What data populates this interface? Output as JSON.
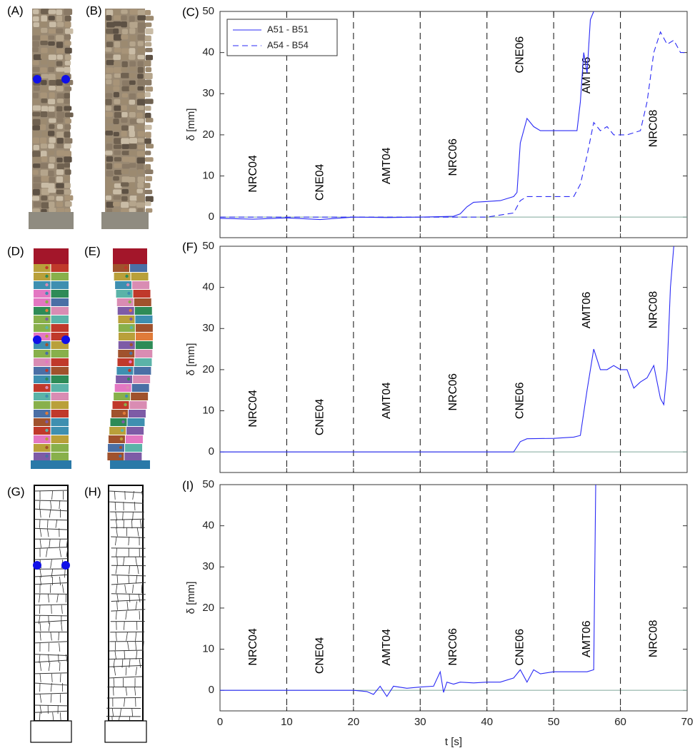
{
  "panels": {
    "labels": [
      "(A)",
      "(B)",
      "(D)",
      "(E)",
      "(G)",
      "(H)"
    ]
  },
  "chart_data": [
    {
      "type": "line",
      "title": "(C)",
      "ylabel": "δ [mm]",
      "xlim": [
        0,
        70
      ],
      "ylim": [
        -5,
        50
      ],
      "xticks": [
        0,
        10,
        20,
        30,
        40,
        50,
        60,
        70
      ],
      "yticks": [
        0,
        10,
        20,
        30,
        40,
        50
      ],
      "xtick_labels": false,
      "vlines": [
        10,
        20,
        30,
        40,
        50,
        60
      ],
      "annotations": [
        "NRC04",
        "CNE04",
        "AMT04",
        "NRC06",
        "CNE06",
        "AMT06",
        "NRC08"
      ],
      "legend": "upper left",
      "series": [
        {
          "name": "A51 - B51",
          "color": "#2a2af5",
          "dash": "solid",
          "x": [
            0,
            5,
            10,
            15,
            20,
            25,
            30,
            35,
            36,
            37,
            38,
            40,
            42,
            44,
            44.5,
            45,
            46,
            47,
            48,
            50,
            52,
            53.5,
            54,
            54.5,
            55,
            55.5,
            56
          ],
          "values": [
            -0.3,
            -0.5,
            -0.2,
            -0.6,
            0,
            -0.1,
            0,
            0.2,
            0.8,
            2.5,
            3.6,
            3.8,
            4,
            5,
            6,
            18,
            24,
            22,
            21,
            21,
            21,
            21,
            28,
            40,
            35,
            48,
            50
          ]
        },
        {
          "name": "A54 - B54",
          "color": "#2a2af5",
          "dash": "dashed",
          "x": [
            0,
            30,
            38,
            40,
            44,
            45,
            46,
            50,
            53,
            54,
            55,
            56,
            57,
            58,
            59,
            60,
            61,
            62,
            63,
            64,
            65,
            66,
            67,
            68,
            69,
            70
          ],
          "values": [
            0,
            0,
            0,
            0,
            1,
            4,
            5,
            5,
            5,
            8,
            15,
            23,
            21,
            22,
            20,
            20,
            20,
            20.5,
            21,
            28,
            40,
            45,
            42,
            43,
            40,
            40
          ]
        }
      ]
    },
    {
      "type": "line",
      "title": "(F)",
      "ylabel": "δ [mm]",
      "xlim": [
        0,
        70
      ],
      "ylim": [
        -5,
        50
      ],
      "xticks": [
        0,
        10,
        20,
        30,
        40,
        50,
        60,
        70
      ],
      "yticks": [
        0,
        10,
        20,
        30,
        40,
        50
      ],
      "xtick_labels": false,
      "vlines": [
        10,
        20,
        30,
        40,
        50,
        60
      ],
      "annotations": [
        "NRC04",
        "CNE04",
        "AMT04",
        "NRC06",
        "CNE06",
        "AMT06",
        "NRC08"
      ],
      "series": [
        {
          "color": "#2a2af5",
          "dash": "solid",
          "x": [
            0,
            10,
            20,
            30,
            40,
            44,
            45,
            46,
            50,
            53,
            54,
            55,
            56,
            57,
            58,
            59,
            60,
            61,
            62,
            63,
            64,
            65,
            66,
            66.5,
            67,
            67.5,
            68
          ],
          "values": [
            0,
            0,
            0,
            0,
            0,
            0,
            2.5,
            3.2,
            3.3,
            3.6,
            4,
            15,
            25,
            20,
            20,
            21,
            20,
            20,
            15.5,
            17,
            18,
            21,
            13,
            11.5,
            20,
            40,
            50
          ]
        }
      ]
    },
    {
      "type": "line",
      "title": "(I)",
      "ylabel": "δ [mm]",
      "xlabel": "t [s]",
      "xlim": [
        0,
        70
      ],
      "ylim": [
        -5,
        50
      ],
      "xticks": [
        0,
        10,
        20,
        30,
        40,
        50,
        60,
        70
      ],
      "yticks": [
        0,
        10,
        20,
        30,
        40,
        50
      ],
      "xtick_labels": true,
      "vlines": [
        10,
        20,
        30,
        40,
        50,
        60
      ],
      "annotations": [
        "NRC04",
        "CNE04",
        "AMT04",
        "NRC06",
        "CNE06",
        "AMT06",
        "NRC08"
      ],
      "series": [
        {
          "color": "#2a2af5",
          "dash": "solid",
          "x": [
            0,
            10,
            20,
            22,
            23,
            24,
            25,
            26,
            28,
            30,
            32,
            33,
            33.5,
            34,
            35,
            36,
            38,
            40,
            42,
            44,
            45,
            46,
            47,
            48,
            50,
            53,
            55,
            56,
            56.3
          ],
          "values": [
            0,
            0,
            0,
            -0.3,
            -1,
            1,
            -1.5,
            1,
            0.5,
            0.8,
            1,
            4.5,
            -0.5,
            2,
            1.5,
            2,
            1.8,
            2,
            2,
            3,
            5,
            2,
            5,
            4,
            4.5,
            4.5,
            4.5,
            5,
            50
          ]
        }
      ]
    }
  ]
}
